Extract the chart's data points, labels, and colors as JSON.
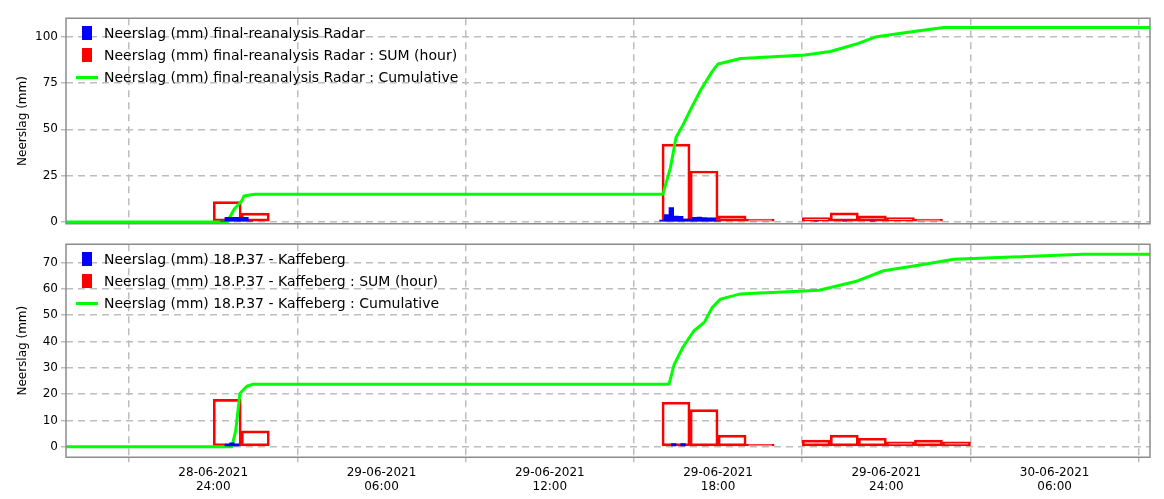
{
  "chart_data": [
    {
      "type": "bar",
      "ylabel": "Neerslag (mm)",
      "xlim": [
        "2021-06-28T18:45",
        "2021-06-30T09:24"
      ],
      "ylim": [
        -1,
        110
      ],
      "yticks": [
        0,
        25,
        50,
        75,
        100
      ],
      "xticks": [
        {
          "value": "2021-06-29T00:00",
          "label": null
        },
        {
          "value": "2021-06-29T06:00",
          "label": null
        },
        {
          "value": "2021-06-29T12:00",
          "label": null
        },
        {
          "value": "2021-06-29T18:00",
          "label": null
        },
        {
          "value": "2021-06-30T00:00",
          "label": null
        },
        {
          "value": "2021-06-30T06:00",
          "label": null
        }
      ],
      "tick_labels": "y",
      "grid": true,
      "legend": "top left",
      "marker": "none",
      "series": [
        {
          "name": "Neerslag (mm) final-reanalysis Radar",
          "color": "#0000ff",
          "x": [
            "2021-06-29T00:20",
            "2021-06-29T00:30",
            "2021-06-29T00:40",
            "2021-06-29T00:50",
            "2021-06-29T01:00",
            "2021-06-29T01:10",
            "2021-06-29T01:20",
            "2021-06-29T16:00",
            "2021-06-29T16:10",
            "2021-06-29T16:20",
            "2021-06-29T16:30",
            "2021-06-29T16:40",
            "2021-06-29T16:50",
            "2021-06-29T17:00",
            "2021-06-29T17:10",
            "2021-06-29T17:20",
            "2021-06-29T17:30",
            "2021-06-29T17:40",
            "2021-06-29T17:50",
            "2021-06-29T18:00",
            "2021-06-29T21:30",
            "2021-06-29T22:30",
            "2021-06-29T23:30"
          ],
          "values": [
            0.5,
            2.5,
            2.5,
            2.5,
            2.5,
            2.5,
            0.5,
            1,
            4,
            7.8,
            3.2,
            3,
            1.5,
            1.5,
            2.5,
            2.6,
            2.3,
            2.2,
            2.2,
            0.5,
            0.4,
            0.5,
            0.4
          ]
        },
        {
          "name": "Neerslag (mm) final-reanalysis Radar : SUM (hour)",
          "color": "#ff0000",
          "x": [
            "2021-06-28T19:30",
            "2021-06-28T20:30",
            "2021-06-28T21:30",
            "2021-06-28T22:30",
            "2021-06-28T23:30",
            "2021-06-29T00:30",
            "2021-06-29T01:30",
            "2021-06-29T02:30",
            "2021-06-29T03:30",
            "2021-06-29T04:30",
            "2021-06-29T05:30",
            "2021-06-29T06:30",
            "2021-06-29T07:30",
            "2021-06-29T08:30",
            "2021-06-29T09:30",
            "2021-06-29T10:30",
            "2021-06-29T11:30",
            "2021-06-29T12:30",
            "2021-06-29T13:30",
            "2021-06-29T14:30",
            "2021-06-29T15:30",
            "2021-06-29T16:30",
            "2021-06-29T17:30",
            "2021-06-29T18:30",
            "2021-06-29T19:30",
            "2021-06-29T20:30",
            "2021-06-29T21:30",
            "2021-06-29T22:30",
            "2021-06-29T23:30",
            "2021-06-30T00:30",
            "2021-06-30T01:30",
            "2021-06-30T02:30",
            "2021-06-30T03:30",
            "2021-06-30T04:30",
            "2021-06-30T05:30",
            "2021-06-30T06:30",
            "2021-06-30T07:30",
            "2021-06-30T08:30"
          ],
          "values": [
            0,
            0,
            0,
            0,
            0,
            11,
            4.8,
            0,
            0,
            0,
            0,
            0,
            0,
            0,
            0,
            0,
            0,
            0,
            0,
            0,
            0,
            42,
            27.5,
            3.3,
            1.6,
            0,
            2.4,
            4.9,
            3.3,
            2.4,
            1.6,
            0,
            0,
            0,
            0,
            0,
            0,
            0
          ]
        },
        {
          "type": "line",
          "name": "Neerslag (mm) final-reanalysis Radar : Cumulative",
          "color": "#00ff00",
          "x": [
            "2021-06-28T18:45",
            "2021-06-29T00:30",
            "2021-06-29T00:45",
            "2021-06-29T01:00",
            "2021-06-29T01:06",
            "2021-06-29T01:18",
            "2021-06-29T01:30",
            "2021-06-29T16:02",
            "2021-06-29T16:18",
            "2021-06-29T16:30",
            "2021-06-29T16:45",
            "2021-06-29T17:04",
            "2021-06-29T17:24",
            "2021-06-29T17:48",
            "2021-06-29T18:00",
            "2021-06-29T18:48",
            "2021-06-29T19:48",
            "2021-06-29T21:06",
            "2021-06-29T22:00",
            "2021-06-29T22:54",
            "2021-06-29T23:36",
            "2021-06-30T00:54",
            "2021-06-30T02:03",
            "2021-06-30T09:24"
          ],
          "values": [
            0,
            0,
            7,
            11,
            14,
            14.5,
            15,
            15,
            29.2,
            45.6,
            52.4,
            62.1,
            71.8,
            81.4,
            85.3,
            88.2,
            89.1,
            90.1,
            92,
            95.9,
            99.8,
            102.7,
            105,
            105
          ]
        }
      ]
    },
    {
      "type": "bar",
      "ylabel": "Neerslag (mm)",
      "xlim": [
        "2021-06-28T18:45",
        "2021-06-30T09:24"
      ],
      "ylim": [
        -4,
        77
      ],
      "yticks": [
        0,
        10,
        20,
        30,
        40,
        50,
        60,
        70
      ],
      "xticks": [
        {
          "value": "2021-06-29T00:00",
          "label": "28-06-2021 24:00"
        },
        {
          "value": "2021-06-29T06:00",
          "label": "29-06-2021 06:00"
        },
        {
          "value": "2021-06-29T12:00",
          "label": "29-06-2021 12:00"
        },
        {
          "value": "2021-06-29T18:00",
          "label": "29-06-2021 18:00"
        },
        {
          "value": "2021-06-30T00:00",
          "label": "29-06-2021 24:00"
        },
        {
          "value": "2021-06-30T06:00",
          "label": "30-06-2021 06:00"
        }
      ],
      "grid": true,
      "legend": "top left",
      "marker": "none",
      "series": [
        {
          "name": "Neerslag (mm) 18.P.37 - Kaffeberg",
          "color": "#0000ff",
          "x": [
            "2021-06-29T00:30",
            "2021-06-29T00:40",
            "2021-06-29T00:50",
            "2021-06-29T16:25",
            "2021-06-29T16:45"
          ],
          "values": [
            1,
            1.5,
            1,
            1.2,
            1.2
          ]
        },
        {
          "name": "Neerslag (mm) 18.P.37 - Kaffeberg : SUM (hour)",
          "color": "#ff0000",
          "x": [
            "2021-06-28T19:30",
            "2021-06-28T20:30",
            "2021-06-28T21:30",
            "2021-06-28T22:30",
            "2021-06-28T23:30",
            "2021-06-29T00:30",
            "2021-06-29T01:30",
            "2021-06-29T02:30",
            "2021-06-29T03:30",
            "2021-06-29T04:30",
            "2021-06-29T05:30",
            "2021-06-29T06:30",
            "2021-06-29T07:30",
            "2021-06-29T08:30",
            "2021-06-29T09:30",
            "2021-06-29T10:30",
            "2021-06-29T11:30",
            "2021-06-29T12:30",
            "2021-06-29T13:30",
            "2021-06-29T14:30",
            "2021-06-29T15:30",
            "2021-06-29T16:30",
            "2021-06-29T17:30",
            "2021-06-29T18:30",
            "2021-06-29T19:30",
            "2021-06-29T20:30",
            "2021-06-29T21:30",
            "2021-06-29T22:30",
            "2021-06-29T23:30",
            "2021-06-30T00:30",
            "2021-06-30T01:30",
            "2021-06-30T02:30",
            "2021-06-30T03:30",
            "2021-06-30T04:30",
            "2021-06-30T05:30",
            "2021-06-30T06:30",
            "2021-06-30T07:30",
            "2021-06-30T08:30"
          ],
          "values": [
            0,
            0,
            0,
            0,
            0,
            18,
            6,
            0,
            0,
            0,
            0,
            0,
            0,
            0,
            0,
            0,
            0,
            0,
            0,
            0,
            0,
            16.9,
            14.1,
            4.4,
            0.9,
            0,
            2.5,
            4.4,
            3.2,
            1.8,
            2.5,
            1.8,
            0,
            0,
            0,
            0,
            0,
            0
          ]
        },
        {
          "type": "line",
          "name": "Neerslag (mm) 18.P.37 - Kaffeberg : Cumulative",
          "color": "#00ff00",
          "x": [
            "2021-06-28T18:45",
            "2021-06-29T00:40",
            "2021-06-29T00:48",
            "2021-06-29T00:57",
            "2021-06-29T01:12",
            "2021-06-29T01:24",
            "2021-06-29T16:15",
            "2021-06-29T16:26",
            "2021-06-29T16:45",
            "2021-06-29T17:08",
            "2021-06-29T17:31",
            "2021-06-29T17:47",
            "2021-06-29T18:05",
            "2021-06-29T18:48",
            "2021-06-29T20:18",
            "2021-06-29T21:36",
            "2021-06-29T22:54",
            "2021-06-29T23:54",
            "2021-06-30T01:12",
            "2021-06-30T02:24",
            "2021-06-30T05:00",
            "2021-06-30T07:00",
            "2021-06-30T09:24"
          ],
          "values": [
            0,
            0,
            6,
            20.2,
            23,
            23.7,
            23.7,
            31.2,
            37.9,
            44,
            47.4,
            52.8,
            56.1,
            58.1,
            58.8,
            59.5,
            62.8,
            66.9,
            69.1,
            71.3,
            72.3,
            73.2,
            73.2
          ]
        }
      ]
    }
  ]
}
